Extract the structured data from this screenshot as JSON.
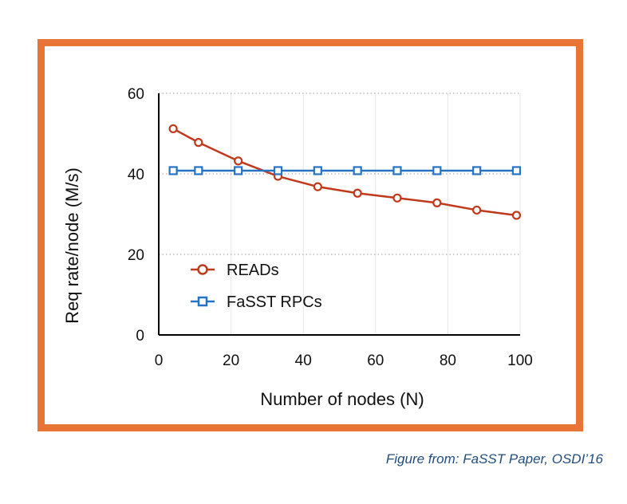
{
  "frame_color": "#e87535",
  "caption": "Figure from: FaSST Paper, OSDI’16",
  "chart_data": {
    "type": "line",
    "title": "",
    "xlabel": "Number of nodes (N)",
    "ylabel": "Req rate/node (M/s)",
    "xlim": [
      0,
      100
    ],
    "ylim": [
      0,
      60
    ],
    "xticks": [
      "0",
      "20",
      "40",
      "60",
      "80",
      "100"
    ],
    "yticks": [
      "0",
      "20",
      "40",
      "60"
    ],
    "grid": true,
    "legend_position": "lower-left",
    "series": [
      {
        "name": "READs",
        "color": "#c0391b",
        "marker": "circle",
        "x": [
          4,
          11,
          22,
          33,
          44,
          55,
          66,
          77,
          88,
          99
        ],
        "y": [
          51.2,
          47.8,
          43.2,
          39.4,
          36.8,
          35.2,
          34.0,
          32.8,
          31.0,
          29.7
        ]
      },
      {
        "name": "FaSST RPCs",
        "color": "#2673c4",
        "marker": "square",
        "x": [
          4,
          11,
          22,
          33,
          44,
          55,
          66,
          77,
          88,
          99
        ],
        "y": [
          40.8,
          40.8,
          40.8,
          40.8,
          40.8,
          40.8,
          40.8,
          40.8,
          40.8,
          40.8
        ]
      }
    ]
  }
}
